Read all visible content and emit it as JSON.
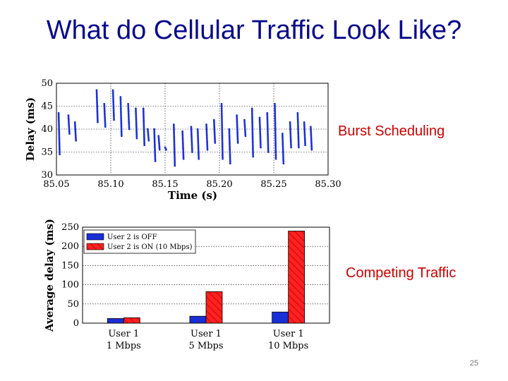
{
  "slide": {
    "title": "What do Cellular Traffic Look Like?",
    "label_burst": "Burst Scheduling",
    "label_competing": "Competing Traffic",
    "page_number": "25"
  },
  "colors": {
    "blue": "#1a2fd6",
    "red": "#ff2020",
    "title": "#0a0a8c",
    "label": "#cc0000"
  },
  "chart_data": [
    {
      "type": "scatter",
      "title": "",
      "xlabel": "Time (s)",
      "ylabel": "Delay (ms)",
      "xlim": [
        85.05,
        85.3
      ],
      "ylim": [
        30,
        50
      ],
      "xticks": [
        "85.05",
        "85.10",
        "85.15",
        "85.20",
        "85.25",
        "85.30"
      ],
      "yticks": [
        "30",
        "35",
        "40",
        "45",
        "50"
      ],
      "grid": true,
      "bursts": [
        {
          "x": 85.052,
          "y_start": 43.5,
          "y_end": 34.5
        },
        {
          "x": 85.061,
          "y_start": 43.0,
          "y_end": 39.0
        },
        {
          "x": 85.067,
          "y_start": 41.5,
          "y_end": 37.5
        },
        {
          "x": 85.087,
          "y_start": 48.5,
          "y_end": 41.5
        },
        {
          "x": 85.094,
          "y_start": 45.5,
          "y_end": 40.5
        },
        {
          "x": 85.102,
          "y_start": 48.5,
          "y_end": 42.0
        },
        {
          "x": 85.109,
          "y_start": 47.0,
          "y_end": 38.5
        },
        {
          "x": 85.116,
          "y_start": 45.5,
          "y_end": 40.0
        },
        {
          "x": 85.123,
          "y_start": 44.5,
          "y_end": 38.0
        },
        {
          "x": 85.13,
          "y_start": 44.5,
          "y_end": 36.5
        },
        {
          "x": 85.134,
          "y_start": 40.0,
          "y_end": 37.5
        },
        {
          "x": 85.14,
          "y_start": 40.0,
          "y_end": 33.0
        },
        {
          "x": 85.144,
          "y_start": 38.5,
          "y_end": 35.5
        },
        {
          "x": 85.15,
          "y_start": 36.0,
          "y_end": 35.5
        },
        {
          "x": 85.158,
          "y_start": 41.0,
          "y_end": 32.0
        },
        {
          "x": 85.166,
          "y_start": 39.5,
          "y_end": 33.5
        },
        {
          "x": 85.174,
          "y_start": 40.5,
          "y_end": 35.0
        },
        {
          "x": 85.18,
          "y_start": 40.0,
          "y_end": 33.5
        },
        {
          "x": 85.188,
          "y_start": 41.0,
          "y_end": 35.5
        },
        {
          "x": 85.195,
          "y_start": 42.0,
          "y_end": 37.0
        },
        {
          "x": 85.202,
          "y_start": 45.5,
          "y_end": 33.5
        },
        {
          "x": 85.209,
          "y_start": 40.0,
          "y_end": 32.5
        },
        {
          "x": 85.216,
          "y_start": 43.0,
          "y_end": 37.0
        },
        {
          "x": 85.223,
          "y_start": 42.0,
          "y_end": 38.5
        },
        {
          "x": 85.23,
          "y_start": 44.5,
          "y_end": 34.0
        },
        {
          "x": 85.237,
          "y_start": 42.5,
          "y_end": 36.0
        },
        {
          "x": 85.244,
          "y_start": 43.5,
          "y_end": 35.0
        },
        {
          "x": 85.251,
          "y_start": 45.5,
          "y_end": 33.5
        },
        {
          "x": 85.258,
          "y_start": 39.0,
          "y_end": 32.5
        },
        {
          "x": 85.265,
          "y_start": 41.5,
          "y_end": 36.0
        },
        {
          "x": 85.272,
          "y_start": 43.5,
          "y_end": 36.0
        },
        {
          "x": 85.278,
          "y_start": 41.5,
          "y_end": 36.5
        },
        {
          "x": 85.284,
          "y_start": 40.5,
          "y_end": 35.5
        }
      ]
    },
    {
      "type": "bar",
      "title": "",
      "xlabel": "",
      "ylabel": "Average delay (ms)",
      "ylim": [
        0,
        250
      ],
      "yticks": [
        "0",
        "50",
        "100",
        "150",
        "200",
        "250"
      ],
      "grid": true,
      "legend_position": "top-left",
      "categories": [
        {
          "line1": "User 1",
          "line2": "1 Mbps"
        },
        {
          "line1": "User 1",
          "line2": "5 Mbps"
        },
        {
          "line1": "User 1",
          "line2": "10 Mbps"
        }
      ],
      "series": [
        {
          "name": "User 2 is OFF",
          "values": [
            12,
            18,
            29
          ],
          "color": "#1a2fd6",
          "hatch": false
        },
        {
          "name": "User 2 is ON (10 Mbps)",
          "values": [
            14,
            82,
            240
          ],
          "color": "#ff2020",
          "hatch": true
        }
      ]
    }
  ]
}
